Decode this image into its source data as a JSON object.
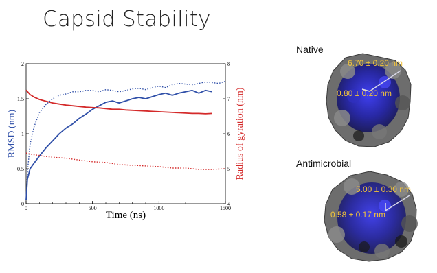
{
  "slide": {
    "title": "Capsid Stability"
  },
  "panels": {
    "native": {
      "label": "Native",
      "outer": "6.70 ± 0.20 nm",
      "inner": "0.80 ± 0.20 nm"
    },
    "antimicrobial": {
      "label": "Antimicrobial",
      "outer": "5.00 ± 0.30 nm",
      "inner": "0.58 ± 0.17 nm"
    }
  },
  "colors": {
    "rmsd": "#2f4fa8",
    "rg": "#d42a2a",
    "measurement": "#f0c23c",
    "capsid_grey": "#7a7a7a",
    "capsid_blue": "#2a2ad0"
  },
  "chart_data": {
    "type": "line",
    "xlabel": "Time (ns)",
    "ylabel_left": "RMSD (nm)",
    "ylabel_right": "Radius of gyration (nm)",
    "xlim": [
      0,
      1500
    ],
    "ylim_left": [
      0,
      2
    ],
    "ylim_right": [
      4,
      8
    ],
    "x_ticks": [
      "0",
      "500",
      "1000",
      "1500"
    ],
    "y_ticks_left": [
      "0",
      "0.5",
      "1",
      "1.5",
      "2"
    ],
    "y_ticks_right": [
      "4",
      "5",
      "6",
      "7",
      "8"
    ],
    "grid": false,
    "series": [
      {
        "axis": "left",
        "color": "#2f4fa8",
        "style": "solid",
        "x": [
          0,
          10,
          30,
          60,
          100,
          150,
          200,
          250,
          300,
          350,
          400,
          450,
          500,
          550,
          600,
          650,
          700,
          750,
          800,
          850,
          900,
          950,
          1000,
          1050,
          1100,
          1150,
          1200,
          1250,
          1300,
          1350,
          1400
        ],
        "y": [
          0.05,
          0.35,
          0.5,
          0.58,
          0.68,
          0.8,
          0.9,
          1.0,
          1.08,
          1.14,
          1.22,
          1.28,
          1.35,
          1.4,
          1.45,
          1.47,
          1.44,
          1.47,
          1.5,
          1.52,
          1.5,
          1.53,
          1.56,
          1.58,
          1.55,
          1.58,
          1.6,
          1.62,
          1.58,
          1.62,
          1.6
        ]
      },
      {
        "axis": "left",
        "color": "#2f4fa8",
        "style": "dotted",
        "x": [
          0,
          10,
          30,
          60,
          100,
          150,
          200,
          250,
          300,
          350,
          400,
          450,
          500,
          550,
          600,
          650,
          700,
          750,
          800,
          850,
          900,
          950,
          1000,
          1050,
          1100,
          1150,
          1200,
          1250,
          1300,
          1350,
          1400,
          1450,
          1500
        ],
        "y": [
          0.05,
          0.45,
          0.85,
          1.1,
          1.3,
          1.42,
          1.5,
          1.55,
          1.57,
          1.6,
          1.6,
          1.62,
          1.62,
          1.6,
          1.63,
          1.62,
          1.6,
          1.62,
          1.64,
          1.65,
          1.63,
          1.66,
          1.68,
          1.66,
          1.7,
          1.72,
          1.71,
          1.7,
          1.72,
          1.74,
          1.73,
          1.72,
          1.75
        ]
      },
      {
        "axis": "right",
        "color": "#d42a2a",
        "style": "solid",
        "x": [
          0,
          30,
          60,
          100,
          150,
          200,
          250,
          300,
          350,
          400,
          450,
          500,
          550,
          600,
          650,
          700,
          750,
          800,
          850,
          900,
          950,
          1000,
          1050,
          1100,
          1150,
          1200,
          1250,
          1300,
          1350,
          1400
        ],
        "y": [
          7.25,
          7.12,
          7.05,
          6.98,
          6.93,
          6.88,
          6.85,
          6.82,
          6.8,
          6.78,
          6.76,
          6.75,
          6.74,
          6.72,
          6.7,
          6.7,
          6.68,
          6.67,
          6.66,
          6.65,
          6.64,
          6.63,
          6.62,
          6.61,
          6.6,
          6.59,
          6.58,
          6.58,
          6.57,
          6.58
        ]
      },
      {
        "axis": "right",
        "color": "#d42a2a",
        "style": "dotted",
        "x": [
          0,
          30,
          60,
          100,
          150,
          200,
          300,
          400,
          500,
          600,
          700,
          800,
          900,
          1000,
          1100,
          1200,
          1300,
          1400,
          1500
        ],
        "y": [
          5.45,
          5.42,
          5.4,
          5.38,
          5.35,
          5.33,
          5.3,
          5.25,
          5.2,
          5.18,
          5.12,
          5.1,
          5.08,
          5.06,
          5.02,
          5.02,
          4.98,
          4.98,
          5.0
        ]
      }
    ]
  }
}
